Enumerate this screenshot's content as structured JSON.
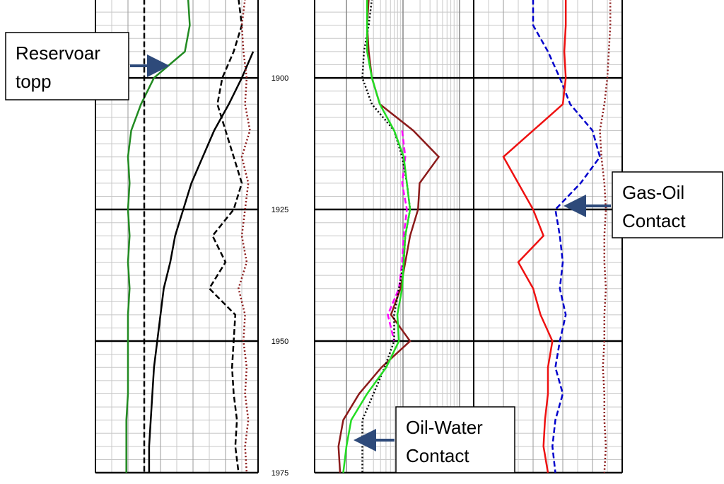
{
  "chart_data": {
    "type": "well-log",
    "ylim": [
      1885.2,
      1975
    ],
    "yticks": [
      1900,
      1925,
      1950,
      1975
    ],
    "depths": [
      1885,
      1890,
      1895,
      1900,
      1905,
      1910,
      1915,
      1920,
      1925,
      1930,
      1935,
      1940,
      1945,
      1950,
      1955,
      1960,
      1965,
      1970,
      1975
    ],
    "tracks": [
      {
        "scale": "linear",
        "series": [
          {
            "color": "#228b22",
            "style": "solid",
            "values": [
              0.57,
              0.58,
              0.55,
              0.36,
              0.28,
              0.22,
              0.2,
              0.21,
              0.2,
              0.21,
              0.2,
              0.21,
              0.2,
              0.2,
              0.2,
              0.2,
              0.19,
              0.19,
              0.19
            ]
          },
          {
            "color": "#000000",
            "style": "dashed",
            "values": [
              0.3,
              0.3,
              0.3,
              0.3,
              0.3,
              0.3,
              0.3,
              0.3,
              0.3,
              0.3,
              0.3,
              0.3,
              0.3,
              0.3,
              0.3,
              0.3,
              0.3,
              0.3,
              0.3
            ]
          },
          {
            "color": "#000000",
            "style": "solid",
            "values": [
              null,
              null,
              0.97,
              0.9,
              0.82,
              0.73,
              0.66,
              0.59,
              0.54,
              0.49,
              0.46,
              0.42,
              0.4,
              0.38,
              0.36,
              0.35,
              0.34,
              0.33,
              0.33
            ]
          },
          {
            "color": "#000000",
            "style": "dashed",
            "values": [
              0.88,
              0.9,
              0.85,
              0.78,
              0.75,
              0.8,
              0.85,
              0.9,
              0.85,
              0.72,
              0.8,
              0.7,
              0.86,
              0.85,
              0.84,
              0.85,
              0.87,
              0.86,
              0.88
            ]
          },
          {
            "color": "#8b1a1a",
            "style": "dotted",
            "values": [
              0.92,
              0.9,
              0.91,
              0.93,
              0.92,
              0.95,
              0.9,
              0.94,
              0.92,
              0.9,
              0.93,
              0.88,
              0.92,
              0.91,
              0.93,
              0.92,
              0.94,
              0.92,
              0.93
            ]
          }
        ]
      },
      {
        "scale": "log",
        "series": [
          {
            "color": "#8b1a1a",
            "style": "solid",
            "values": [
              0.34,
              0.33,
              0.34,
              0.36,
              0.41,
              0.62,
              0.78,
              0.66,
              0.65,
              0.6,
              0.57,
              0.54,
              0.48,
              0.6,
              0.42,
              0.28,
              0.18,
              0.15,
              0.16
            ]
          },
          {
            "color": "#ff00ff",
            "style": "dashed",
            "values": [
              null,
              null,
              null,
              null,
              null,
              0.55,
              0.57,
              0.55,
              0.58,
              0.56,
              0.55,
              0.53,
              0.46,
              0.5,
              null,
              null,
              null,
              null,
              null
            ]
          },
          {
            "color": "#000000",
            "style": "dotted",
            "values": [
              0.36,
              0.34,
              0.31,
              0.3,
              0.36,
              0.5,
              0.55,
              0.58,
              0.6,
              0.57,
              0.56,
              0.53,
              0.5,
              0.5,
              0.44,
              0.37,
              0.3,
              0.3,
              0.3
            ]
          },
          {
            "color": "#22dd22",
            "style": "solid",
            "values": [
              0.33,
              0.33,
              0.33,
              0.36,
              0.41,
              0.5,
              0.56,
              0.58,
              0.6,
              0.57,
              0.56,
              0.55,
              0.52,
              0.53,
              0.45,
              0.33,
              0.23,
              0.2,
              0.18
            ]
          }
        ]
      },
      {
        "scale": "linear",
        "series": [
          {
            "color": "#8b1a1a",
            "style": "dotted",
            "values": [
              0.92,
              0.92,
              0.91,
              0.9,
              0.88,
              0.85,
              0.86,
              0.88,
              0.89,
              0.88,
              0.88,
              0.89,
              0.88,
              0.88,
              0.87,
              0.88,
              0.88,
              0.89,
              0.88
            ]
          },
          {
            "color": "#0000cc",
            "style": "dashed",
            "values": [
              0.4,
              0.4,
              0.5,
              0.58,
              0.65,
              0.8,
              0.85,
              0.72,
              0.55,
              0.58,
              0.6,
              0.58,
              0.62,
              0.58,
              0.55,
              0.6,
              0.55,
              0.53,
              0.55
            ]
          },
          {
            "color": "#ee1111",
            "style": "solid",
            "values": [
              0.62,
              0.62,
              0.61,
              0.62,
              0.6,
              0.4,
              0.2,
              0.3,
              0.4,
              0.47,
              0.3,
              0.4,
              0.45,
              0.53,
              0.5,
              0.5,
              0.48,
              0.47,
              0.5
            ]
          }
        ]
      }
    ],
    "annotations": [
      {
        "lines": [
          "Reservoar",
          "topp"
        ]
      },
      {
        "lines": [
          "Gas-Oil",
          "Contact"
        ]
      },
      {
        "lines": [
          "Oil-Water",
          "Contact"
        ]
      }
    ]
  }
}
